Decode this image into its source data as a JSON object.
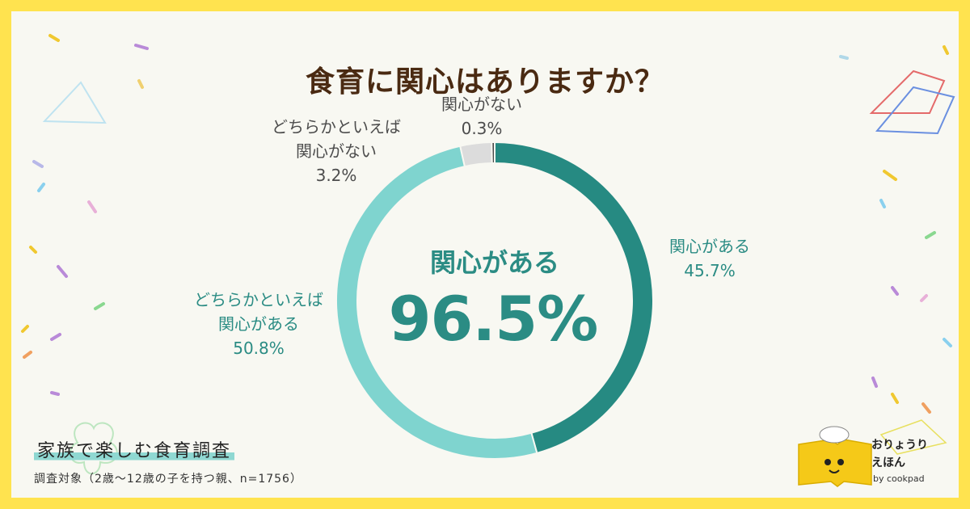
{
  "title": "食育に関心はありますか？",
  "center": {
    "label": "関心がある",
    "value": "96.5%"
  },
  "labels": {
    "very": {
      "name": "関心がある",
      "pct": "45.7%"
    },
    "somewhat": {
      "line1": "どちらかといえば",
      "line2": "関心がある",
      "pct": "50.8%"
    },
    "somewhat_not": {
      "line1": "どちらかといえば",
      "line2": "関心がない",
      "pct": "3.2%"
    },
    "not": {
      "name": "関心がない",
      "pct": "0.3%"
    }
  },
  "footer": {
    "survey_title": "家族で楽しむ食育調査",
    "survey_note": "調査対象（2歳〜12歳の子を持つ親、n=1756）"
  },
  "logo": {
    "line1": "おりょうり",
    "line2": "えほん",
    "by": "by cookpad"
  },
  "colors": {
    "background": "#ffe34f",
    "card": "#f8f8f2",
    "very": "#268a82",
    "somewhat": "#7fd4cf",
    "somewhat_not": "#dcdcdc",
    "not": "#4a4a4a"
  },
  "chart_data": {
    "type": "pie",
    "title": "食育に関心はありますか？",
    "categories": [
      "関心がある",
      "どちらかといえば関心がある",
      "どちらかといえば関心がない",
      "関心がない"
    ],
    "values": [
      45.7,
      50.8,
      3.2,
      0.3
    ],
    "unit": "%",
    "donut": true,
    "center_text": "関心がある 96.5%"
  }
}
